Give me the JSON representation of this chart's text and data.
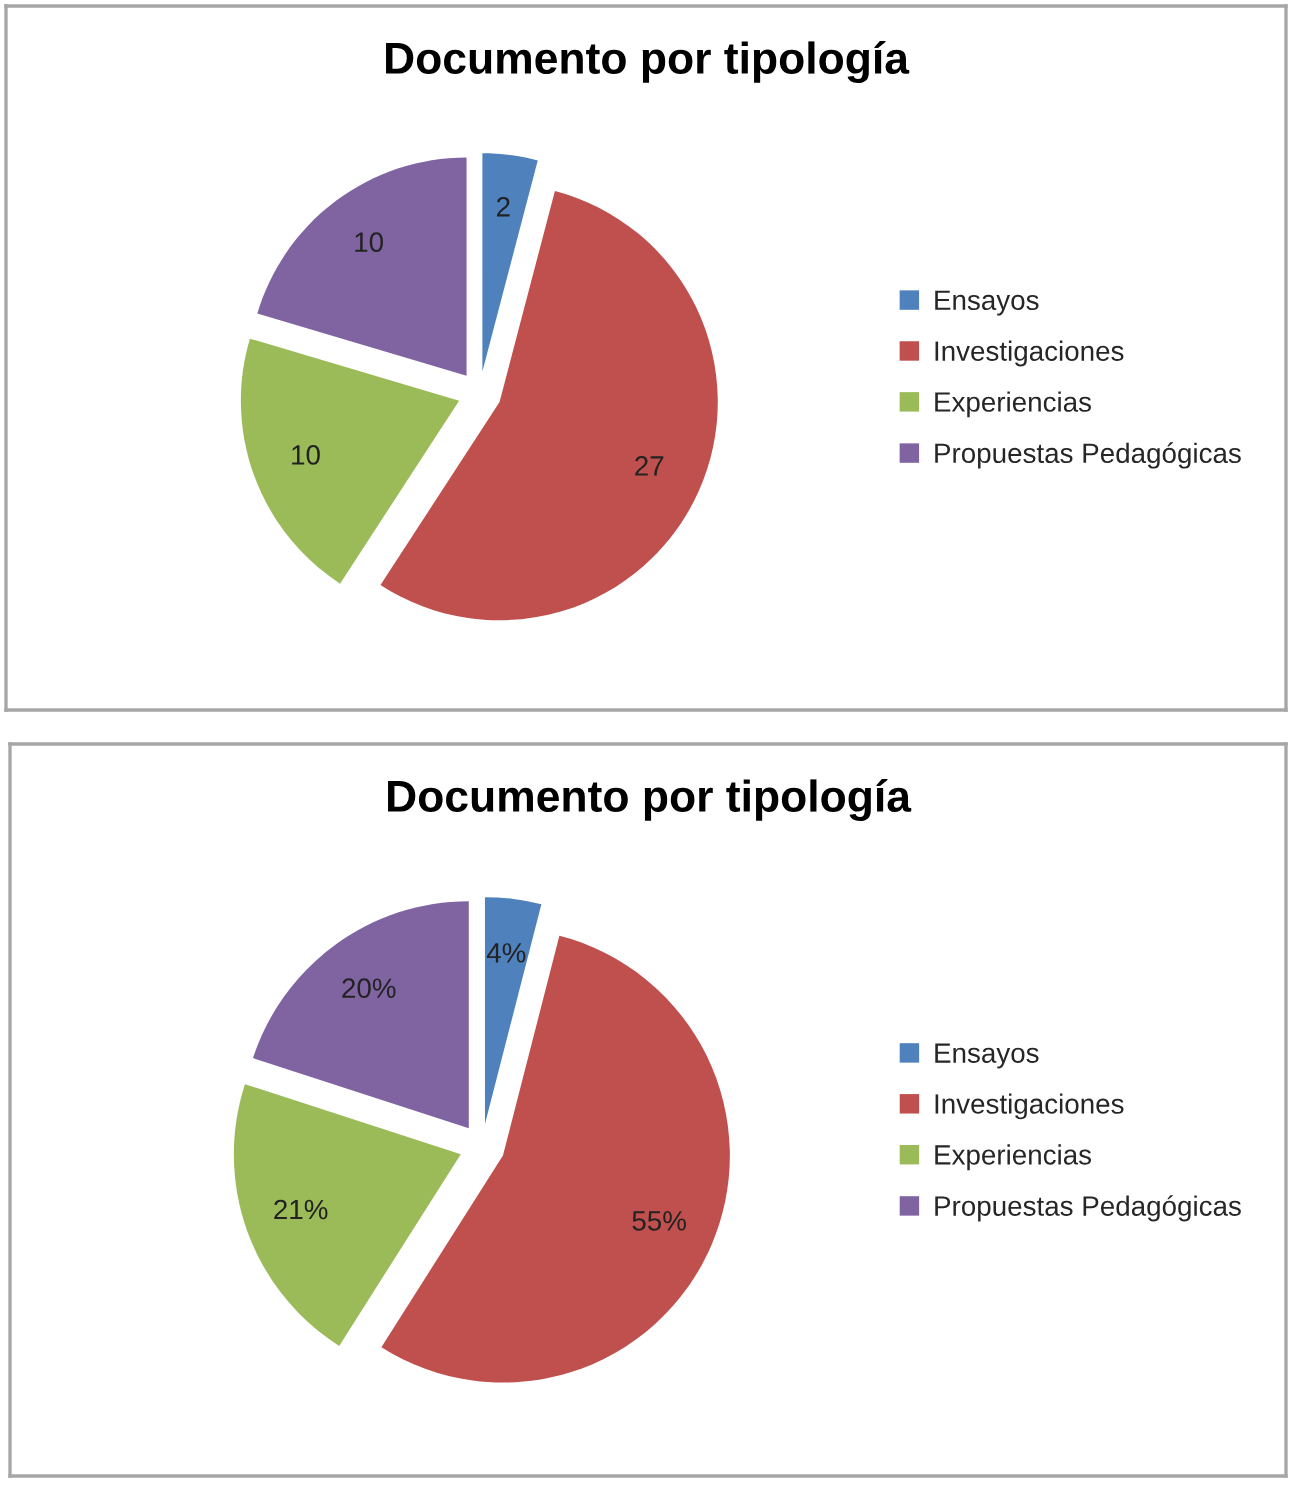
{
  "chart_data": [
    {
      "type": "pie",
      "title": "Documento por tipología",
      "categories": [
        "Ensayos",
        "Investigaciones",
        "Experiencias",
        "Propuestas Pedagógicas"
      ],
      "values": [
        2,
        27,
        10,
        10
      ],
      "colors": [
        "#4f81bd",
        "#c0504d",
        "#9bbb59",
        "#8064a2"
      ],
      "data_labels": true,
      "legend": "right"
    },
    {
      "type": "pie",
      "title": "Documento por tipología",
      "categories": [
        "Ensayos",
        "Investigaciones",
        "Experiencias",
        "Propuestas Pedagógicas"
      ],
      "values": [
        4,
        55,
        21,
        20
      ],
      "value_labels": [
        "4%",
        "55%",
        "21%",
        "20%"
      ],
      "colors": [
        "#4f81bd",
        "#c0504d",
        "#9bbb59",
        "#8064a2"
      ],
      "legend": "right"
    }
  ]
}
